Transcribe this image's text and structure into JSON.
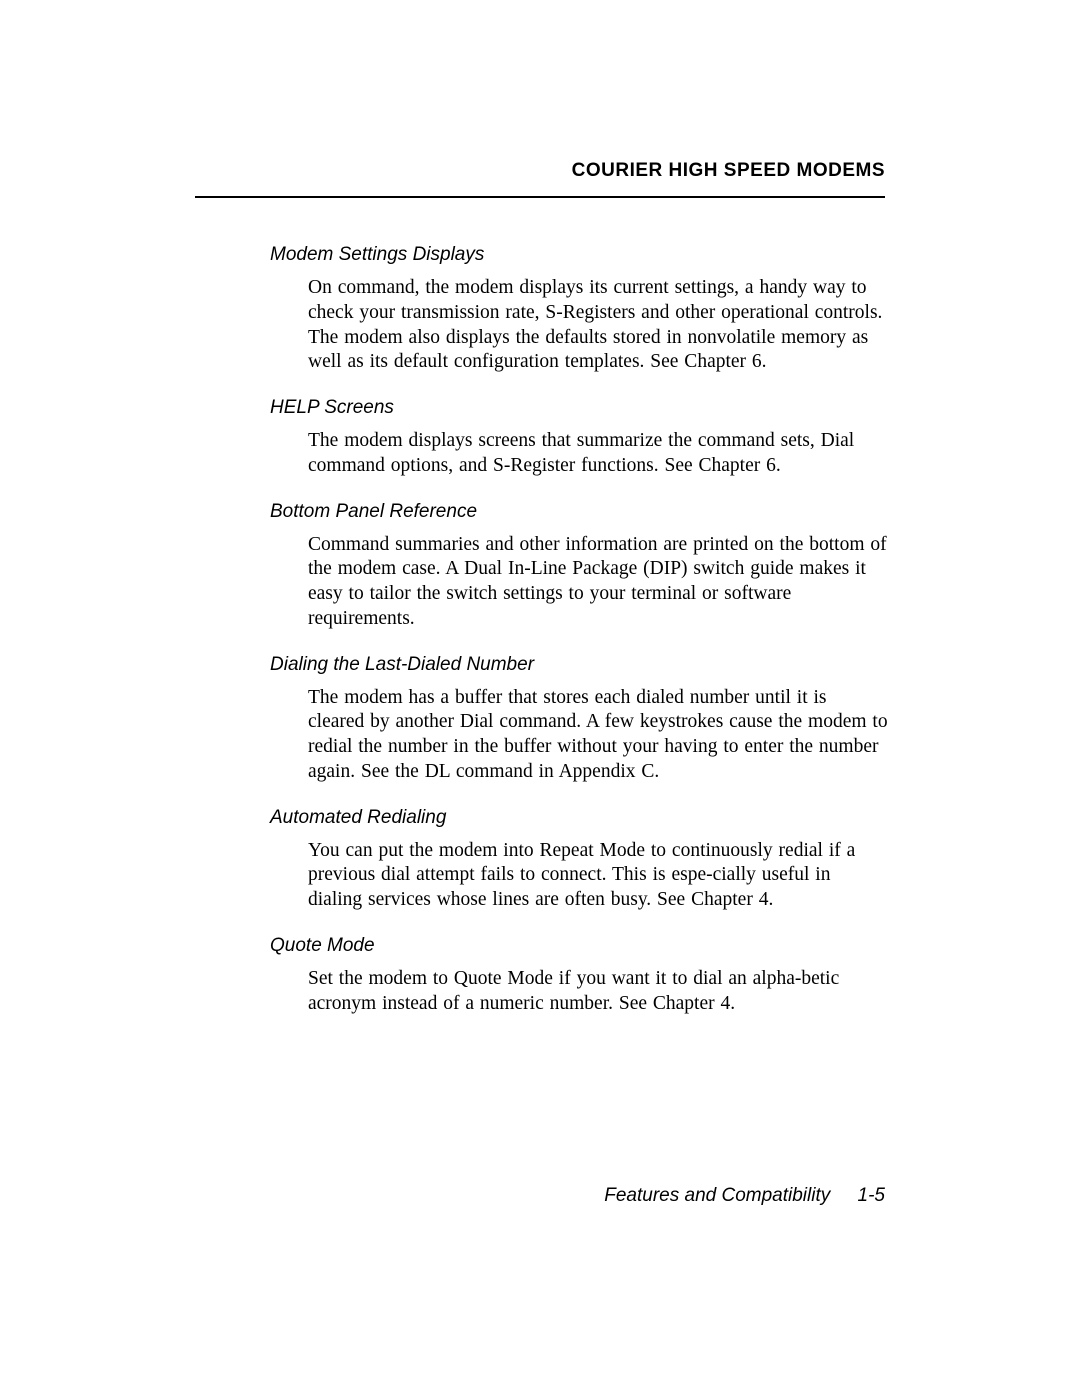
{
  "header": {
    "running_head": "COURIER HIGH SPEED MODEMS"
  },
  "sections": [
    {
      "heading": "Modem Settings Displays",
      "body": "On command, the modem displays its current settings, a handy way to check your transmission rate, S-Registers and other operational controls.  The modem also displays the defaults stored in nonvolatile memory as well as its default configuration templates.  See Chapter 6."
    },
    {
      "heading": "HELP Screens",
      "body": "The modem displays screens that summarize the command sets, Dial command options, and S-Register functions.  See Chapter 6."
    },
    {
      "heading": "Bottom Panel Reference",
      "body": "Command summaries and other information are printed on the bottom of the modem case.  A Dual In-Line Package (DIP) switch guide makes it easy to tailor the switch settings to your terminal or software requirements."
    },
    {
      "heading": "Dialing the Last-Dialed Number",
      "body": "The modem has a buffer that stores each dialed number until it is cleared by another Dial command.  A few keystrokes cause the modem to redial the number in the buffer without your having to enter the number again.  See the DL command in Appendix C."
    },
    {
      "heading": "Automated Redialing",
      "body": "You can put the modem into Repeat Mode to continuously redial if a previous dial attempt fails to connect.  This is espe-cially useful in dialing services whose lines are often busy.  See Chapter 4."
    },
    {
      "heading": "Quote Mode",
      "body": "Set the modem to Quote Mode if you want it to dial an alpha-betic acronym instead of a numeric number.  See Chapter 4."
    }
  ],
  "footer": {
    "section_title": "Features and Compatibility",
    "page_number": "1-5"
  }
}
